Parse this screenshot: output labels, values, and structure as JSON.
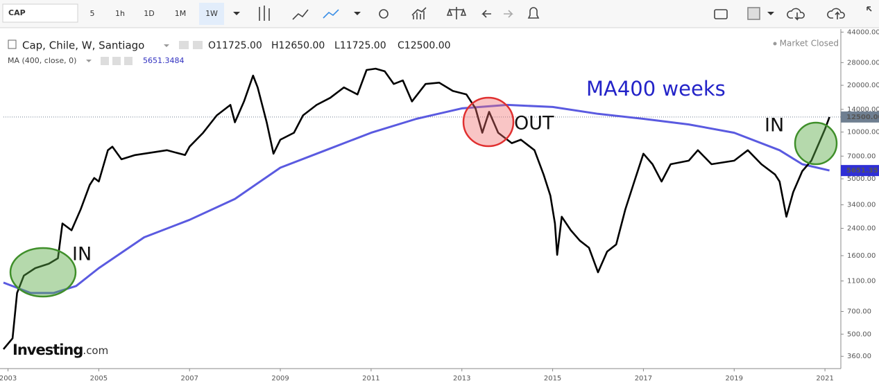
{
  "toolbar": {
    "symbol": "CAP",
    "intervals": [
      "5",
      "1h",
      "1D",
      "1M",
      "1W"
    ]
  },
  "chart_data": {
    "type": "line",
    "title": "Cap, Chile, W, Santiago",
    "ohlc": [
      {
        "key": "O",
        "value": "11725.00"
      },
      {
        "key": "H",
        "value": "12650.00"
      },
      {
        "key": "L",
        "value": "11725.00"
      },
      {
        "key": "C",
        "value": "12500.00"
      }
    ],
    "indicator": {
      "label": "MA (400, close, 0)",
      "value": 5651.3484
    },
    "status": "Market Closed",
    "logo": {
      "brand": "Investing",
      "suffix": ".com"
    },
    "annotations": [
      {
        "text": "MA400 weeks"
      },
      {
        "text": "IN"
      },
      {
        "text": "OUT"
      },
      {
        "text": "IN"
      }
    ],
    "log_scale": true,
    "xlim": [
      2002.9,
      2021.35
    ],
    "xticks": [
      2003,
      2005,
      2007,
      2009,
      2011,
      2013,
      2015,
      2017,
      2019,
      2021
    ],
    "ylim": [
      300,
      46000
    ],
    "yticks": [
      {
        "value": 360,
        "label": "360.00"
      },
      {
        "value": 500,
        "label": "500.00"
      },
      {
        "value": 700,
        "label": "700.00"
      },
      {
        "value": 1100,
        "label": "1100.00"
      },
      {
        "value": 1600,
        "label": "1600.00"
      },
      {
        "value": 2400,
        "label": "2400.00"
      },
      {
        "value": 3400,
        "label": "3400.00"
      },
      {
        "value": 5000,
        "label": "5000.00"
      },
      {
        "value": 7000,
        "label": "7000.00"
      },
      {
        "value": 10000,
        "label": "10000.00"
      },
      {
        "value": 14000,
        "label": "14000.00"
      },
      {
        "value": 20000,
        "label": "20000.00"
      },
      {
        "value": 28000,
        "label": "28000.00"
      },
      {
        "value": 44000,
        "label": "44000.00"
      }
    ],
    "series": [
      {
        "name": "Cap",
        "color": "#000000",
        "tag": "12500.00",
        "tag_color": "#6f7f91",
        "x": [
          2002.9,
          2003.1,
          2003.2,
          2003.35,
          2003.6,
          2003.9,
          2004.1,
          2004.2,
          2004.4,
          2004.6,
          2004.8,
          2004.9,
          2005.0,
          2005.2,
          2005.3,
          2005.5,
          2005.8,
          2006.2,
          2006.5,
          2006.9,
          2007.0,
          2007.3,
          2007.6,
          2007.9,
          2008.0,
          2008.2,
          2008.4,
          2008.5,
          2008.7,
          2008.85,
          2009.0,
          2009.3,
          2009.5,
          2009.8,
          2010.1,
          2010.4,
          2010.7,
          2010.9,
          2011.1,
          2011.3,
          2011.5,
          2011.7,
          2011.9,
          2012.2,
          2012.5,
          2012.8,
          2013.1,
          2013.3,
          2013.45,
          2013.6,
          2013.8,
          2014.1,
          2014.3,
          2014.6,
          2014.8,
          2014.95,
          2015.05,
          2015.1,
          2015.2,
          2015.4,
          2015.6,
          2015.8,
          2016.0,
          2016.2,
          2016.4,
          2016.6,
          2016.8,
          2017.0,
          2017.2,
          2017.4,
          2017.6,
          2018.0,
          2018.2,
          2018.5,
          2019.0,
          2019.3,
          2019.6,
          2019.9,
          2020.0,
          2020.15,
          2020.3,
          2020.5,
          2020.7,
          2020.9,
          2021.0,
          2021.1
        ],
        "values": [
          400,
          470,
          920,
          1190,
          1330,
          1420,
          1540,
          2580,
          2330,
          3170,
          4560,
          5060,
          4800,
          7640,
          8050,
          6680,
          7110,
          7410,
          7640,
          7110,
          8050,
          9900,
          12800,
          14960,
          11560,
          15750,
          23100,
          19370,
          11560,
          7260,
          8930,
          9900,
          12800,
          14960,
          16600,
          19370,
          17470,
          25100,
          25600,
          24600,
          20400,
          21500,
          15750,
          20400,
          20800,
          18400,
          17470,
          14200,
          9900,
          13500,
          9900,
          8480,
          8930,
          7640,
          5330,
          3900,
          2580,
          1620,
          2850,
          2330,
          2000,
          1800,
          1250,
          1700,
          1890,
          3170,
          4800,
          7260,
          6210,
          4800,
          6210,
          6540,
          7640,
          6210,
          6540,
          7640,
          6210,
          5330,
          4800,
          2850,
          4100,
          5600,
          6540,
          8930,
          10430,
          12500
        ]
      },
      {
        "name": "MA (400, close, 0)",
        "color": "#5a5ae0",
        "tag": "5651.35",
        "tag_color": "#2f2fd6",
        "x": [
          2002.9,
          2003.5,
          2004.0,
          2004.5,
          2005.0,
          2006.0,
          2007.0,
          2008.0,
          2009.0,
          2010.0,
          2011.0,
          2012.0,
          2013.0,
          2014.0,
          2015.0,
          2016.0,
          2017.0,
          2018.0,
          2019.0,
          2020.0,
          2020.5,
          2021.1
        ],
        "values": [
          1073,
          920,
          920,
          1020,
          1330,
          2100,
          2720,
          3710,
          5900,
          7640,
          9900,
          12170,
          14200,
          14960,
          14500,
          13100,
          12170,
          11200,
          9900,
          7640,
          6210,
          5651.3484
        ]
      }
    ]
  }
}
